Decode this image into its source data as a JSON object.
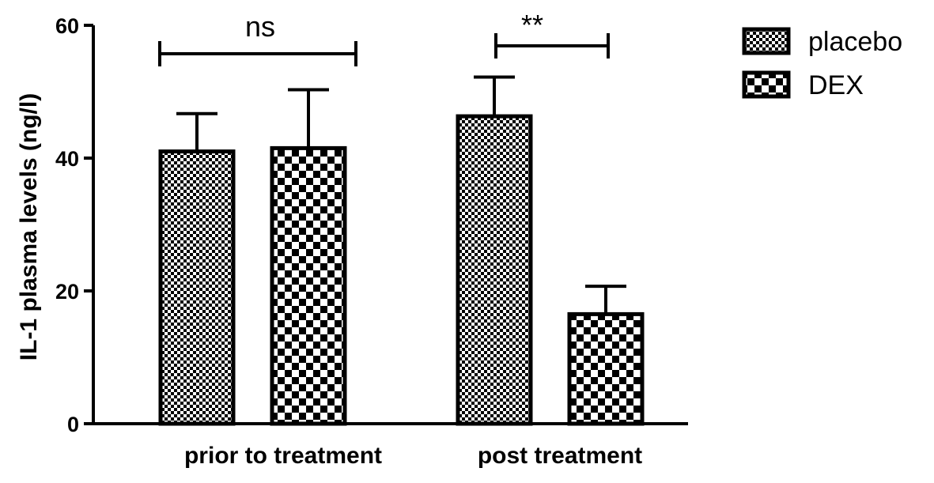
{
  "chart_data": {
    "type": "bar",
    "ylabel": "IL-1 plasma levels (ng/l)",
    "xlabel": "",
    "ylim": [
      0,
      60
    ],
    "yticks": [
      0,
      20,
      40,
      60
    ],
    "categories": [
      "prior to treatment",
      "post treatment"
    ],
    "series": [
      {
        "name": "placebo",
        "values": [
          41,
          46.3
        ],
        "errors": [
          5.7,
          5.9
        ],
        "pattern": "fine-checker"
      },
      {
        "name": "DEX",
        "values": [
          41.5,
          16.5
        ],
        "errors": [
          8.8,
          4.2
        ],
        "pattern": "coarse-checker"
      }
    ],
    "significance": [
      {
        "label": "ns",
        "category_index": 0,
        "bar_from": 0,
        "bar_to": 1
      },
      {
        "label": "**",
        "category_index": 1,
        "bar_from": 0,
        "bar_to": 1
      }
    ],
    "legend_position": "top-right",
    "colors": {
      "ink": "#000000",
      "background": "#ffffff"
    }
  }
}
